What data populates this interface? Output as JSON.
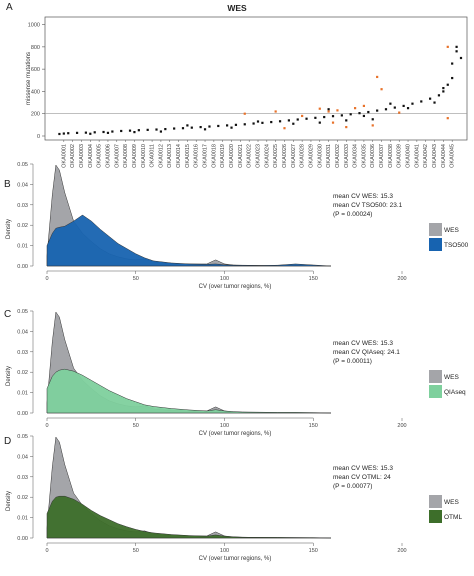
{
  "chart_data": [
    {
      "panel": "A",
      "type": "scatter",
      "title": "WES",
      "ylabel": "missense mutations",
      "ylim": [
        0,
        1050
      ],
      "yticks": [
        0,
        200,
        400,
        600,
        800,
        1000
      ],
      "reference_line": 200,
      "n_samples": 90,
      "x_tick_labels": [
        "OKA0001",
        "OKA0002",
        "OKA0003",
        "OKA0004",
        "OKA0005",
        "OKA0006",
        "OKA0007",
        "OKA0008",
        "OKA0009",
        "OKA0010",
        "OKA0011",
        "OKA0012",
        "OKA0013",
        "OKA0014",
        "OKA0015",
        "OKA0016",
        "OKA0017",
        "OKA0018",
        "OKA0019",
        "OKA0020",
        "OKA0021",
        "OKA0022",
        "OKA0023",
        "OKA0024",
        "OKA0025",
        "OKA0026",
        "OKA0027",
        "OKA0028",
        "OKA0029",
        "OKA0030",
        "OKA0031",
        "OKA0032",
        "OKA0033",
        "OKA0034",
        "OKA0035",
        "OKA0036",
        "OKA0037",
        "OKA0038",
        "OKA0039",
        "OKA0040",
        "OKA0041",
        "OKA0042",
        "OKA0043",
        "OKA0044",
        "OKA0045"
      ],
      "series": [
        {
          "color": "#111111",
          "points": [
            [
              1,
              18
            ],
            [
              2,
              22
            ],
            [
              3,
              25
            ],
            [
              5,
              28
            ],
            [
              7,
              30
            ],
            [
              9,
              33
            ],
            [
              11,
              36
            ],
            [
              13,
              40
            ],
            [
              15,
              45
            ],
            [
              17,
              48
            ],
            [
              19,
              52
            ],
            [
              21,
              55
            ],
            [
              23,
              58
            ],
            [
              25,
              62
            ],
            [
              27,
              67
            ],
            [
              29,
              70
            ],
            [
              31,
              75
            ],
            [
              33,
              80
            ],
            [
              35,
              85
            ],
            [
              37,
              90
            ],
            [
              39,
              95
            ],
            [
              41,
              100
            ],
            [
              43,
              105
            ],
            [
              45,
              112
            ],
            [
              47,
              118
            ],
            [
              49,
              125
            ],
            [
              51,
              132
            ],
            [
              53,
              140
            ],
            [
              55,
              148
            ],
            [
              57,
              155
            ],
            [
              59,
              163
            ],
            [
              61,
              170
            ],
            [
              63,
              178
            ],
            [
              65,
              185
            ],
            [
              67,
              195
            ],
            [
              69,
              205
            ],
            [
              71,
              215
            ],
            [
              73,
              228
            ],
            [
              75,
              240
            ],
            [
              77,
              255
            ],
            [
              79,
              270
            ],
            [
              81,
              290
            ],
            [
              83,
              310
            ],
            [
              85,
              335
            ],
            [
              87,
              365
            ],
            [
              88,
              400
            ],
            [
              89,
              460
            ],
            [
              90,
              520
            ],
            [
              90,
              650
            ],
            [
              91,
              760
            ],
            [
              91,
              800
            ],
            [
              92,
              700
            ],
            [
              88,
              430
            ],
            [
              86,
              300
            ],
            [
              80,
              250
            ],
            [
              72,
              150
            ],
            [
              66,
              140
            ],
            [
              60,
              120
            ],
            [
              54,
              110
            ],
            [
              46,
              130
            ],
            [
              40,
              75
            ],
            [
              34,
              60
            ],
            [
              30,
              95
            ],
            [
              24,
              40
            ],
            [
              18,
              35
            ],
            [
              12,
              28
            ],
            [
              8,
              20
            ],
            [
              62,
              240
            ],
            [
              70,
              180
            ],
            [
              76,
              290
            ]
          ]
        },
        {
          "color": "#e8722a",
          "points": [
            [
              43,
              200
            ],
            [
              50,
              220
            ],
            [
              56,
              180
            ],
            [
              60,
              245
            ],
            [
              62,
              220
            ],
            [
              64,
              230
            ],
            [
              68,
              250
            ],
            [
              70,
              270
            ],
            [
              73,
              530
            ],
            [
              74,
              420
            ],
            [
              63,
              120
            ],
            [
              66,
              80
            ],
            [
              72,
              95
            ],
            [
              78,
              210
            ],
            [
              89,
              800
            ],
            [
              89,
              160
            ],
            [
              52,
              70
            ]
          ]
        }
      ]
    },
    {
      "panel": "B",
      "type": "area",
      "xlabel": "CV (over tumor regions, %)",
      "ylabel": "Density",
      "xlim": [
        0,
        200
      ],
      "ylim": [
        0,
        0.05
      ],
      "xticks": [
        0,
        50,
        100,
        150,
        200
      ],
      "yticks": [
        0,
        0.01,
        0.02,
        0.03,
        0.04,
        0.05
      ],
      "x": [
        0,
        3,
        5,
        7,
        10,
        15,
        20,
        25,
        30,
        35,
        40,
        45,
        50,
        55,
        60,
        70,
        80,
        90,
        95,
        100,
        105,
        110,
        120,
        130,
        140,
        150,
        160
      ],
      "series": [
        {
          "name": "WES",
          "color": "#a4a5a9",
          "values": [
            0.005,
            0.035,
            0.0495,
            0.047,
            0.036,
            0.022,
            0.016,
            0.012,
            0.0085,
            0.006,
            0.0045,
            0.0035,
            0.003,
            0.0035,
            0.002,
            0.0012,
            0.001,
            0.001,
            0.003,
            0.001,
            0.0005,
            0.0004,
            0.0003,
            0.0002,
            0.0002,
            0.0001,
            0
          ]
        },
        {
          "name": "TSO500",
          "color": "#1763b0",
          "values": [
            0.01,
            0.016,
            0.0185,
            0.019,
            0.0195,
            0.022,
            0.025,
            0.022,
            0.018,
            0.0145,
            0.011,
            0.0085,
            0.006,
            0.004,
            0.0025,
            0.0015,
            0.001,
            0.0008,
            0.001,
            0.0006,
            0.0004,
            0.0003,
            0.0002,
            0.0004,
            0.001,
            0.0005,
            0
          ]
        }
      ],
      "stats": [
        "mean CV WES: 15.3",
        "mean CV TSO500: 23.1",
        "(P = 0.00024)"
      ]
    },
    {
      "panel": "C",
      "type": "area",
      "xlabel": "CV (over tumor regions, %)",
      "ylabel": "Density",
      "xlim": [
        0,
        200
      ],
      "ylim": [
        0,
        0.05
      ],
      "xticks": [
        0,
        50,
        100,
        150,
        200
      ],
      "yticks": [
        0,
        0.01,
        0.02,
        0.03,
        0.04,
        0.05
      ],
      "x": [
        0,
        3,
        5,
        7,
        10,
        15,
        20,
        25,
        30,
        35,
        40,
        45,
        50,
        55,
        60,
        70,
        80,
        90,
        95,
        100,
        105,
        110,
        120,
        130,
        140,
        150,
        160
      ],
      "series": [
        {
          "name": "WES",
          "color": "#a4a5a9",
          "values": [
            0.005,
            0.035,
            0.0495,
            0.047,
            0.036,
            0.022,
            0.016,
            0.012,
            0.0085,
            0.006,
            0.0045,
            0.0035,
            0.003,
            0.0035,
            0.002,
            0.0012,
            0.001,
            0.001,
            0.003,
            0.001,
            0.0005,
            0.0004,
            0.0003,
            0.0002,
            0.0002,
            0.0001,
            0
          ]
        },
        {
          "name": "QIAseq",
          "color": "#7ed09d",
          "values": [
            0.012,
            0.018,
            0.02,
            0.021,
            0.0215,
            0.0205,
            0.0185,
            0.016,
            0.0135,
            0.011,
            0.009,
            0.007,
            0.0055,
            0.004,
            0.0032,
            0.0022,
            0.0015,
            0.001,
            0.0016,
            0.001,
            0.0007,
            0.0005,
            0.0004,
            0.0003,
            0.0003,
            0.0002,
            0
          ]
        }
      ],
      "stats": [
        "mean CV WES: 15.3",
        "mean CV QIAseq: 24.1",
        "(P = 0.00011)"
      ]
    },
    {
      "panel": "D",
      "type": "area",
      "xlabel": "CV (over tumor regions, %)",
      "ylabel": "Density",
      "xlim": [
        0,
        200
      ],
      "ylim": [
        0,
        0.05
      ],
      "xticks": [
        0,
        50,
        100,
        150,
        200
      ],
      "yticks": [
        0,
        0.01,
        0.02,
        0.03,
        0.04,
        0.05
      ],
      "x": [
        0,
        3,
        5,
        7,
        10,
        15,
        20,
        25,
        30,
        35,
        40,
        45,
        50,
        55,
        60,
        70,
        80,
        90,
        95,
        100,
        105,
        110,
        120,
        130,
        140,
        150,
        160
      ],
      "series": [
        {
          "name": "WES",
          "color": "#a4a5a9",
          "values": [
            0.005,
            0.035,
            0.0495,
            0.047,
            0.036,
            0.022,
            0.016,
            0.012,
            0.0085,
            0.006,
            0.0045,
            0.0035,
            0.003,
            0.0035,
            0.002,
            0.0012,
            0.001,
            0.001,
            0.003,
            0.001,
            0.0005,
            0.0004,
            0.0003,
            0.0002,
            0.0002,
            0.0001,
            0
          ]
        },
        {
          "name": "OTML",
          "color": "#3d6e2a",
          "values": [
            0.012,
            0.018,
            0.02,
            0.0205,
            0.0205,
            0.019,
            0.0165,
            0.0135,
            0.011,
            0.009,
            0.007,
            0.0055,
            0.0042,
            0.0032,
            0.0025,
            0.0017,
            0.0012,
            0.0009,
            0.0015,
            0.0009,
            0.0006,
            0.0004,
            0.0003,
            0.0003,
            0.0002,
            0.0002,
            0
          ]
        }
      ],
      "stats": [
        "mean CV WES: 15.3",
        "mean CV OTML: 24",
        "(P = 0.00077)"
      ]
    }
  ]
}
